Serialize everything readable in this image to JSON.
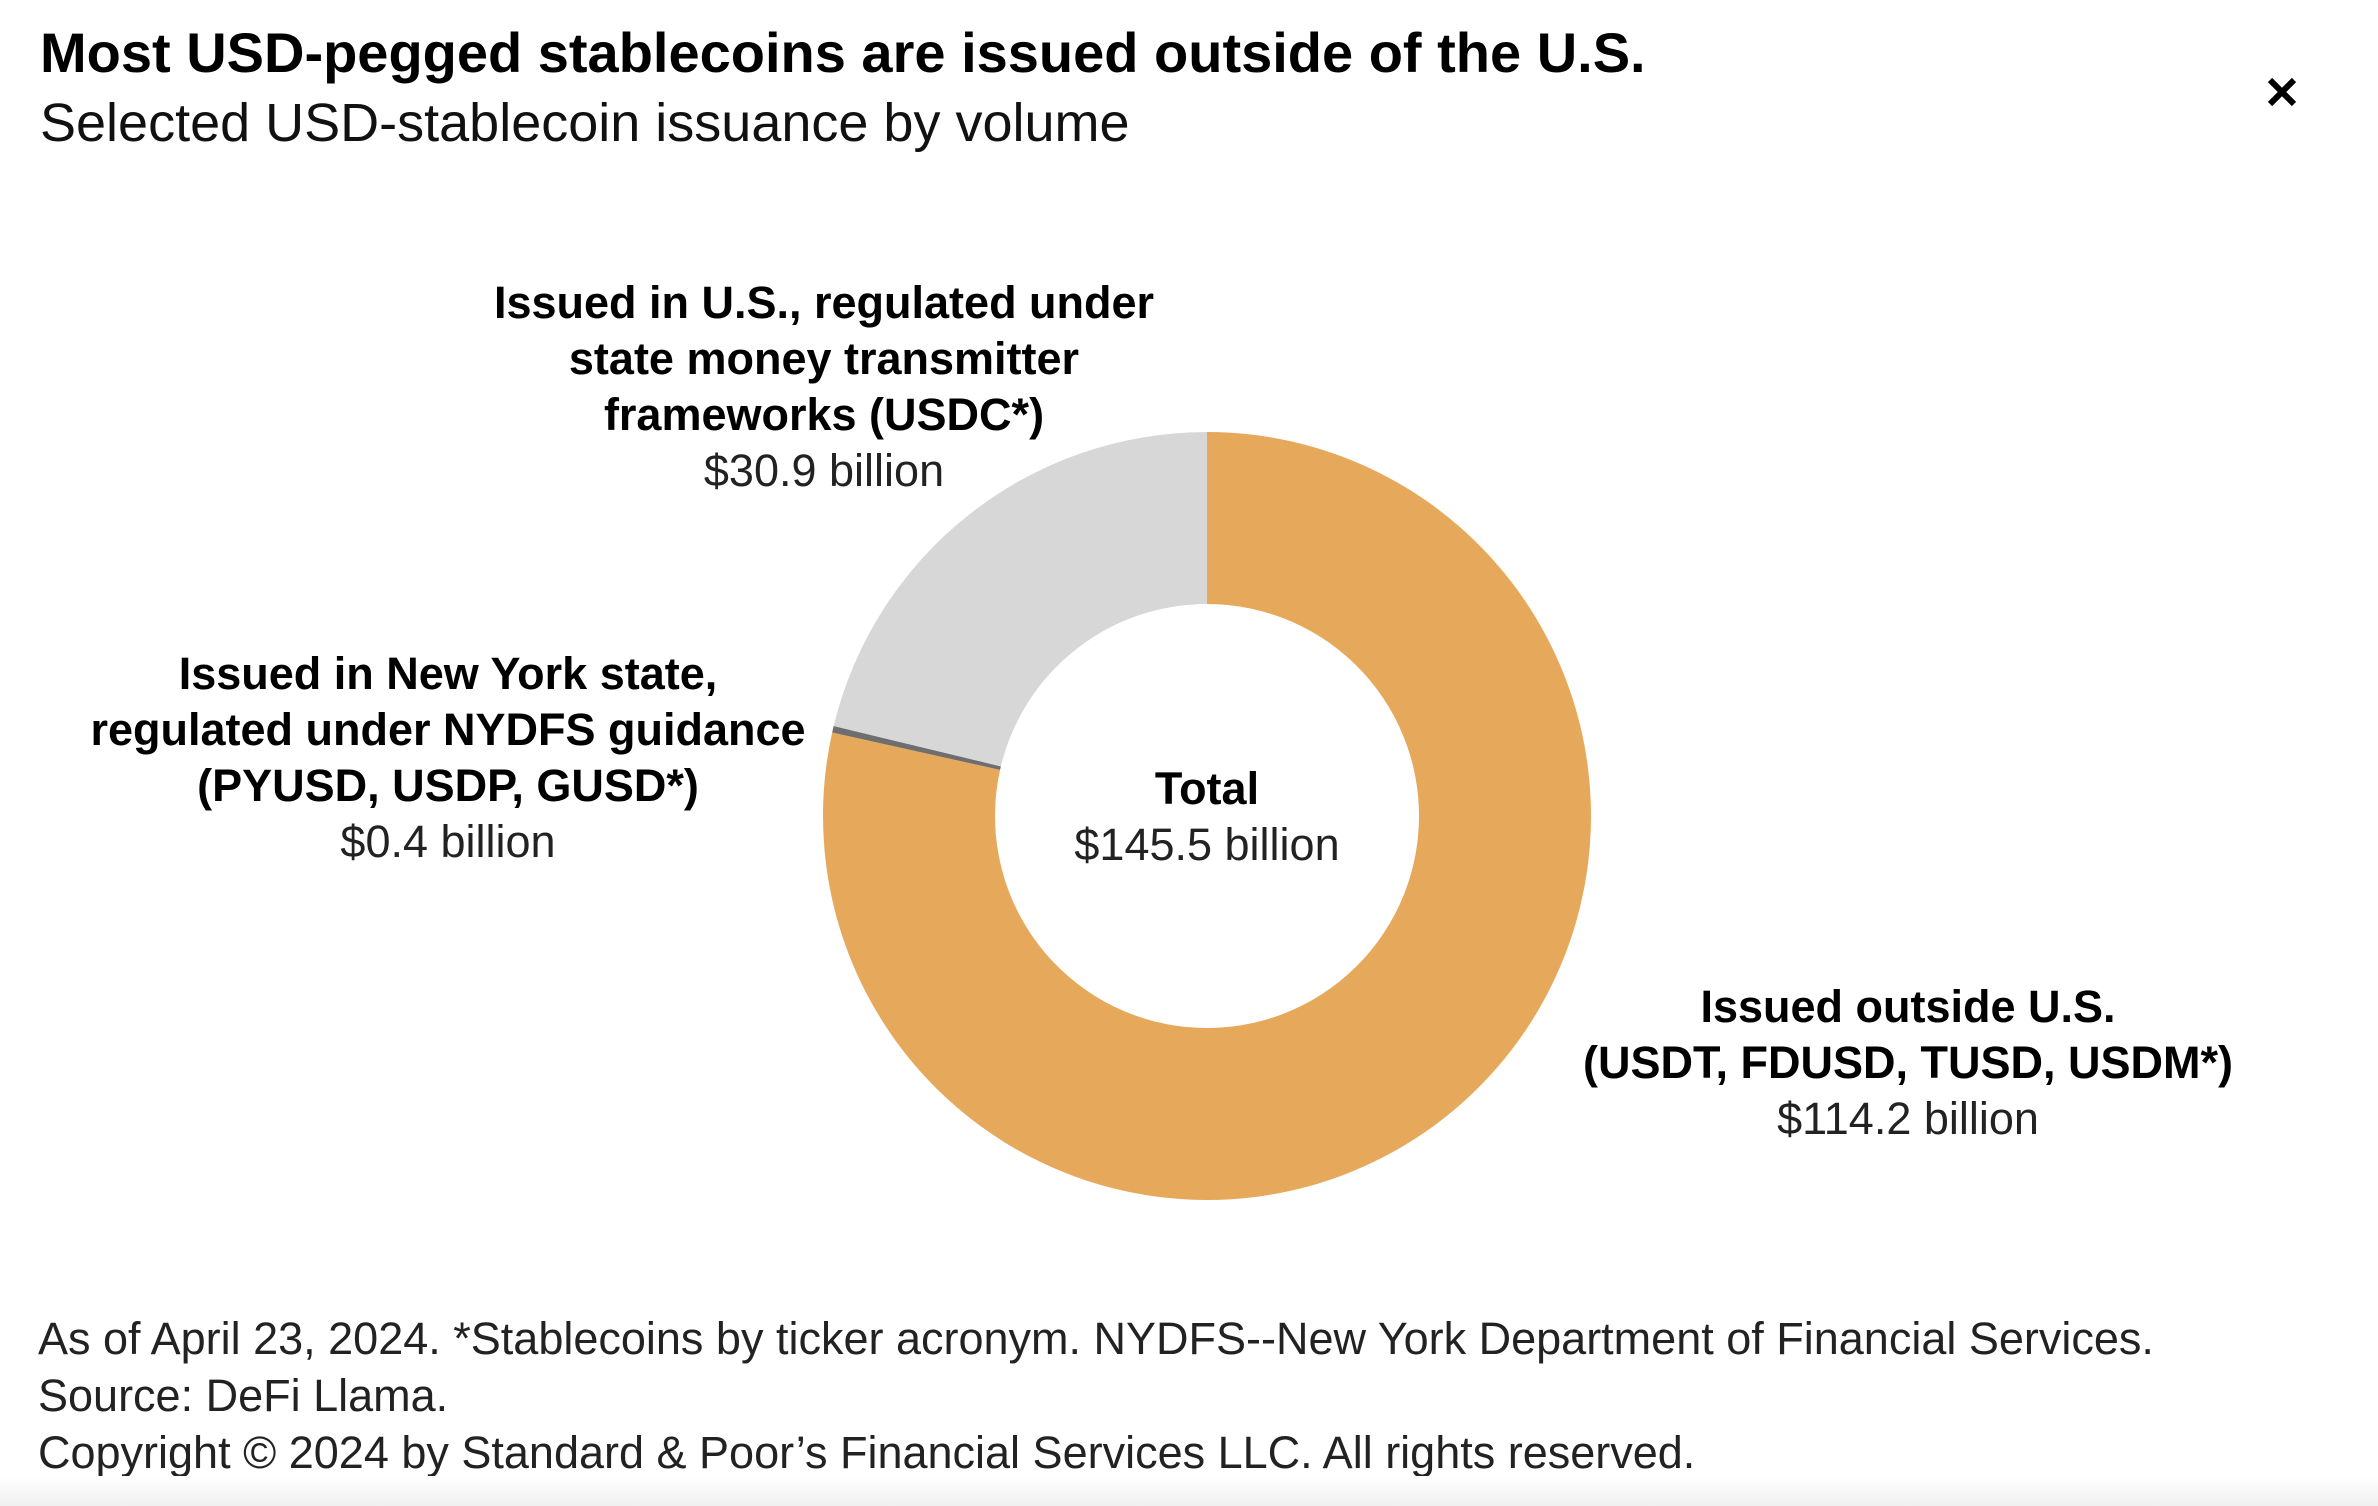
{
  "title": "Most USD-pegged stablecoins are issued outside of the U.S.",
  "subtitle": "Selected USD-stablecoin issuance by volume",
  "close_icon": "close-icon",
  "chart_data": {
    "type": "pie",
    "variant": "donut",
    "unit": "billion USD",
    "center_label": {
      "title": "Total",
      "value": "$145.5 billion"
    },
    "total": 145.5,
    "slices": [
      {
        "name": "Issued outside U.S. (USDT, FDUSD, TUSD, USDM*)",
        "label_lines": [
          "Issued outside U.S.",
          "(USDT, FDUSD, TUSD, USDM*)"
        ],
        "value": 114.2,
        "value_label": "$114.2 billion",
        "color": "#E6A95B"
      },
      {
        "name": "Issued in New York state, regulated under NYDFS guidance (PYUSD, USDP, GUSD*)",
        "label_lines": [
          "Issued in New York state,",
          "regulated under NYDFS guidance",
          "(PYUSD, USDP, GUSD*)"
        ],
        "value": 0.4,
        "value_label": "$0.4 billion",
        "color": "#6E6E6E"
      },
      {
        "name": "Issued in U.S., regulated under state money transmitter frameworks (USDC*)",
        "label_lines": [
          "Issued in U.S., regulated under",
          "state money transmitter",
          "frameworks (USDC*)"
        ],
        "value": 30.9,
        "value_label": "$30.9 billion",
        "color": "#D7D7D7"
      }
    ]
  },
  "footer": {
    "note": "As of April 23, 2024. *Stablecoins by ticker acronym. NYDFS--New York Department of Financial Services.",
    "source": "Source: DeFi Llama.",
    "copyright": "Copyright © 2024 by Standard & Poor’s Financial Services LLC. All rights reserved."
  }
}
